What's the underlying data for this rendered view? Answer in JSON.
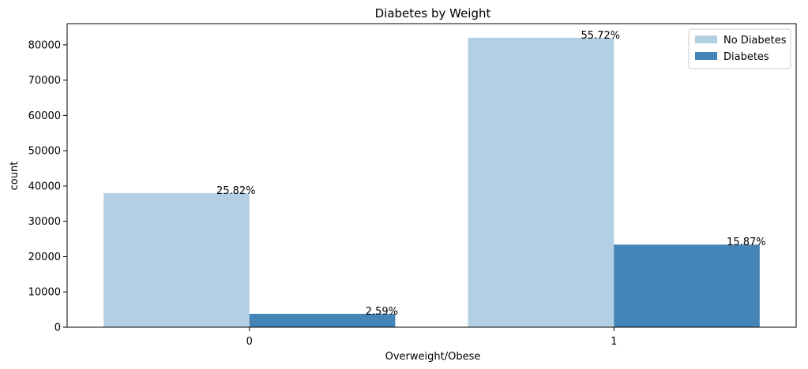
{
  "chart_data": {
    "type": "bar",
    "title": "Diabetes by Weight",
    "xlabel": "Overweight/Obese",
    "ylabel": "count",
    "categories": [
      "0",
      "1"
    ],
    "series": [
      {
        "name": "No Diabetes",
        "values": [
          38000,
          82000
        ],
        "labels": [
          "25.82%",
          "55.72%"
        ],
        "color": "#b3cfe3"
      },
      {
        "name": "Diabetes",
        "values": [
          3800,
          23400
        ],
        "labels": [
          "2.59%",
          "15.87%"
        ],
        "color": "#4584b6"
      }
    ],
    "ylim": [
      0,
      86000
    ],
    "yticks": [
      0,
      10000,
      20000,
      30000,
      40000,
      50000,
      60000,
      70000,
      80000
    ],
    "ytick_labels": [
      "0",
      "10000",
      "20000",
      "30000",
      "40000",
      "50000",
      "60000",
      "70000",
      "80000"
    ],
    "legend_position": "top-right",
    "grid": false
  }
}
